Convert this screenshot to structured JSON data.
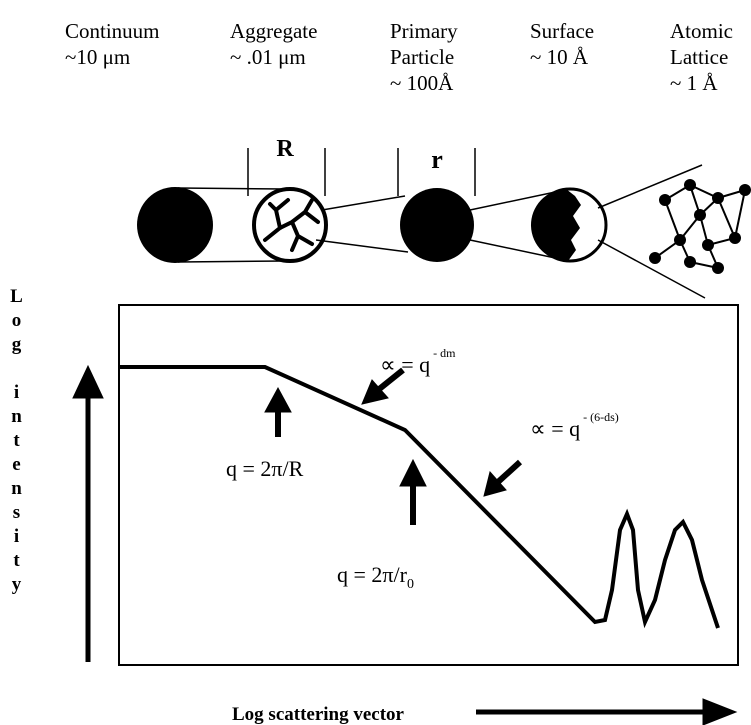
{
  "scales": [
    {
      "lines": [
        "Continuum",
        "~10 μm"
      ]
    },
    {
      "lines": [
        "Aggregate",
        "~ .01 μm"
      ]
    },
    {
      "lines": [
        "Primary",
        "Particle",
        "~ 100Å"
      ]
    },
    {
      "lines": [
        "Surface",
        "~ 10 Å"
      ]
    },
    {
      "lines": [
        "Atomic",
        "Lattice",
        "~ 1 Å"
      ]
    }
  ],
  "size_labels": {
    "aggregate": "R",
    "particle": "r"
  },
  "power_laws": [
    {
      "prefix": "∝ = q",
      "exponent": "- dm"
    },
    {
      "prefix": "∝ = q",
      "exponent": "- (6-ds)"
    }
  ],
  "q_markers": [
    {
      "text": "q = 2π/R"
    },
    {
      "text": "q = 2π/r",
      "subscript": "0"
    }
  ],
  "axes": {
    "y": "Log intensity",
    "x": "Log scattering vector"
  }
}
